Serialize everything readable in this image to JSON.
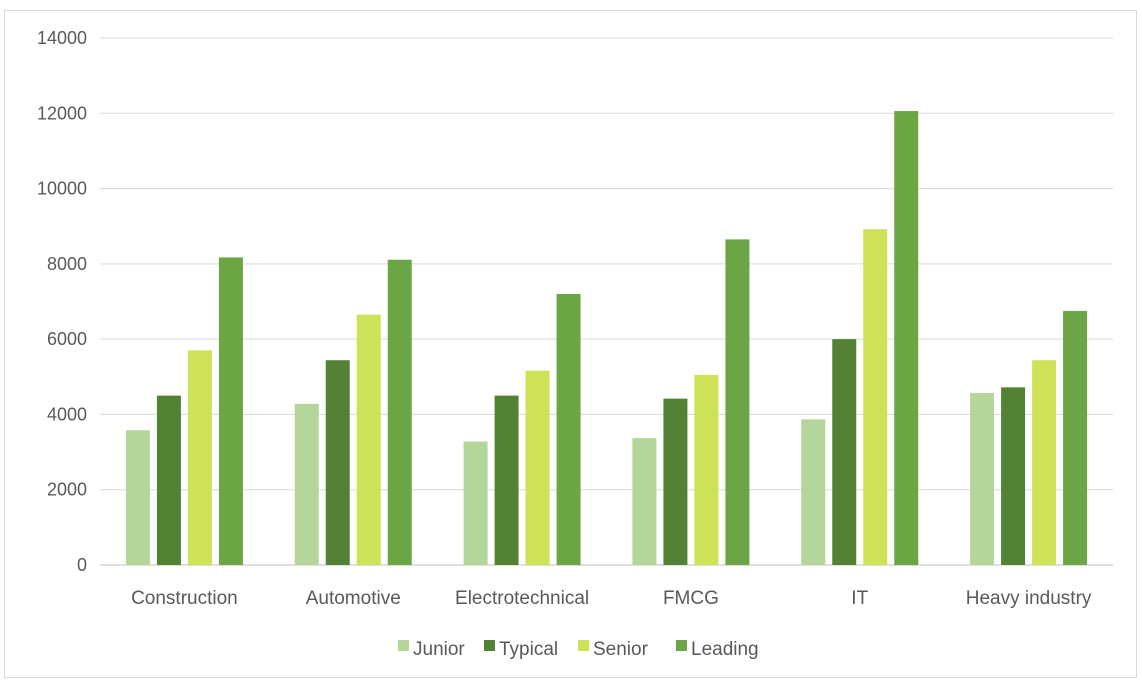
{
  "chart_data": {
    "type": "bar",
    "categories": [
      "Construction",
      "Automotive",
      "Electrotechnical",
      "FMCG",
      "IT",
      "Heavy industry"
    ],
    "series": [
      {
        "name": "Junior",
        "color": "#b4d69b",
        "values": [
          3580,
          4280,
          3280,
          3370,
          3870,
          4570
        ]
      },
      {
        "name": "Typical",
        "color": "#548235",
        "values": [
          4500,
          5440,
          4500,
          4420,
          6000,
          4720
        ]
      },
      {
        "name": "Senior",
        "color": "#cde256",
        "values": [
          5700,
          6650,
          5160,
          5050,
          8920,
          5440
        ]
      },
      {
        "name": "Leading",
        "color": "#6ca544",
        "values": [
          8170,
          8110,
          7200,
          8650,
          12060,
          6750
        ]
      }
    ],
    "y_ticks": [
      "0",
      "2000",
      "4000",
      "6000",
      "8000",
      "10000",
      "12000",
      "14000"
    ],
    "ylim": [
      0,
      14000
    ],
    "grid": true,
    "legend_position": "bottom",
    "title": "",
    "xlabel": "",
    "ylabel": ""
  }
}
